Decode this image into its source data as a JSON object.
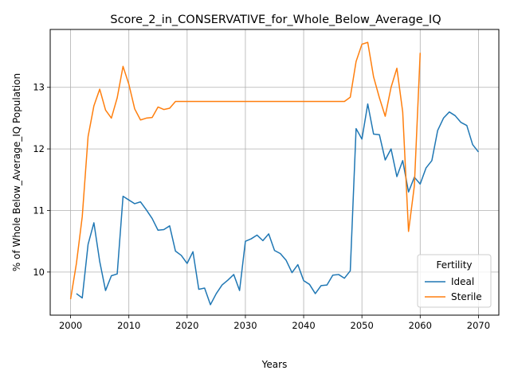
{
  "chart_data": {
    "type": "line",
    "title": "Score_2_in_CONSERVATIVE_for_Whole_Below_Average_IQ",
    "xlabel": "Years",
    "ylabel": "% of Whole Below_Average_IQ Population",
    "xlim": [
      1996.5,
      2073.5
    ],
    "ylim": [
      9.3,
      13.94
    ],
    "xticks": [
      2000,
      2010,
      2020,
      2030,
      2040,
      2050,
      2060,
      2070
    ],
    "yticks": [
      10,
      11,
      12,
      13
    ],
    "grid": true,
    "legend": {
      "title": "Fertility",
      "position": "lower right"
    },
    "series": [
      {
        "name": "Ideal",
        "color": "#1f77b4",
        "x": [
          2001,
          2002,
          2003,
          2004,
          2005,
          2006,
          2007,
          2008,
          2009,
          2010,
          2011,
          2012,
          2013,
          2014,
          2015,
          2016,
          2017,
          2018,
          2019,
          2020,
          2021,
          2022,
          2023,
          2024,
          2025,
          2026,
          2027,
          2028,
          2029,
          2030,
          2031,
          2032,
          2033,
          2034,
          2035,
          2036,
          2037,
          2038,
          2039,
          2040,
          2041,
          2042,
          2043,
          2044,
          2045,
          2046,
          2047,
          2048,
          2049,
          2050,
          2051,
          2052,
          2053,
          2054,
          2055,
          2056,
          2057,
          2058,
          2059,
          2060,
          2061,
          2062,
          2063,
          2064,
          2065,
          2066,
          2067,
          2068,
          2069,
          2070
        ],
        "values": [
          9.65,
          9.58,
          10.45,
          10.8,
          10.17,
          9.7,
          9.94,
          9.97,
          11.23,
          11.17,
          11.11,
          11.14,
          11.01,
          10.87,
          10.68,
          10.69,
          10.75,
          10.34,
          10.27,
          10.14,
          10.33,
          9.72,
          9.74,
          9.47,
          9.65,
          9.79,
          9.87,
          9.96,
          9.7,
          10.5,
          10.54,
          10.6,
          10.51,
          10.62,
          10.35,
          10.3,
          10.19,
          9.99,
          10.12,
          9.86,
          9.8,
          9.65,
          9.78,
          9.79,
          9.95,
          9.96,
          9.9,
          10.02,
          12.33,
          12.16,
          12.73,
          12.24,
          12.23,
          11.82,
          12.0,
          11.55,
          11.81,
          11.3,
          11.54,
          11.43,
          11.69,
          11.81,
          12.3,
          12.5,
          12.6,
          12.54,
          12.43,
          12.38,
          12.07,
          11.95
        ]
      },
      {
        "name": "Sterile",
        "color": "#ff7f0e",
        "x": [
          2000,
          2001,
          2002,
          2003,
          2004,
          2005,
          2006,
          2007,
          2008,
          2009,
          2010,
          2011,
          2012,
          2013,
          2014,
          2015,
          2016,
          2017,
          2018,
          2019,
          2020,
          2021,
          2022,
          2023,
          2024,
          2025,
          2026,
          2027,
          2028,
          2029,
          2030,
          2031,
          2032,
          2033,
          2034,
          2035,
          2036,
          2037,
          2038,
          2039,
          2040,
          2041,
          2042,
          2043,
          2044,
          2045,
          2046,
          2047,
          2048,
          2049,
          2050,
          2051,
          2052,
          2053,
          2054,
          2055,
          2056,
          2057,
          2058,
          2059,
          2060
        ],
        "values": [
          9.56,
          10.14,
          10.9,
          12.2,
          12.7,
          12.97,
          12.63,
          12.5,
          12.83,
          13.34,
          13.05,
          12.65,
          12.47,
          12.5,
          12.51,
          12.68,
          12.64,
          12.66,
          12.77,
          12.77,
          12.77,
          12.77,
          12.77,
          12.77,
          12.77,
          12.77,
          12.77,
          12.77,
          12.77,
          12.77,
          12.77,
          12.77,
          12.77,
          12.77,
          12.77,
          12.77,
          12.77,
          12.77,
          12.77,
          12.77,
          12.77,
          12.77,
          12.77,
          12.77,
          12.77,
          12.77,
          12.77,
          12.77,
          12.84,
          13.42,
          13.7,
          13.73,
          13.17,
          12.83,
          12.53,
          13.0,
          13.31,
          12.6,
          10.66,
          11.4,
          13.56
        ]
      }
    ]
  }
}
